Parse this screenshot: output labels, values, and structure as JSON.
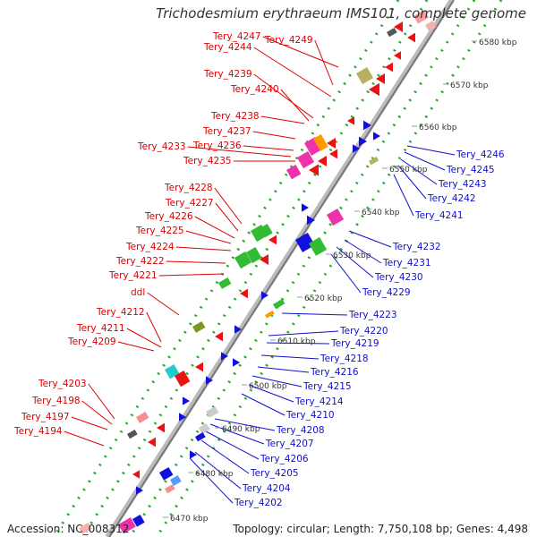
{
  "title": "Trichodesmium erythraeum IMS101, complete genome",
  "footer": {
    "accession": "Accession: NC_008312",
    "info": "Topology: circular; Length: 7,750,108 bp; Genes: 4,498"
  },
  "colors": {
    "left_labels": "#dd0000",
    "right_labels": "#1010cc",
    "backbone": "#888888",
    "dots": "#22aa22"
  },
  "kbp_labels": [
    "6580 kbp",
    "6570 kbp",
    "6560 kbp",
    "6550 kbp",
    "6540 kbp",
    "6530 kbp",
    "6520 kbp",
    "6510 kbp",
    "6500 kbp",
    "6490 kbp",
    "6480 kbp",
    "6470 kbp"
  ],
  "left_genes": [
    "Tery_4247",
    "Tery_4249",
    "Tery_4244",
    "Tery_4239",
    "Tery_4240",
    "Tery_4238",
    "Tery_4237",
    "Tery_4236",
    "Tery_4233",
    "Tery_4235",
    "Tery_4228",
    "Tery_4227",
    "Tery_4226",
    "Tery_4225",
    "Tery_4224",
    "Tery_4222",
    "Tery_4221",
    "ddl",
    "Tery_4212",
    "Tery_4211",
    "Tery_4209",
    "Tery_4203",
    "Tery_4198",
    "Tery_4197",
    "Tery_4194"
  ],
  "right_genes": [
    "Tery_4246",
    "Tery_4245",
    "Tery_4243",
    "Tery_4242",
    "Tery_4241",
    "Tery_4232",
    "Tery_4231",
    "Tery_4230",
    "Tery_4229",
    "Tery_4223",
    "Tery_4220",
    "Tery_4219",
    "Tery_4218",
    "Tery_4216",
    "Tery_4215",
    "Tery_4214",
    "Tery_4210",
    "Tery_4208",
    "Tery_4207",
    "Tery_4206",
    "Tery_4205",
    "Tery_4204",
    "Tery_4202"
  ]
}
